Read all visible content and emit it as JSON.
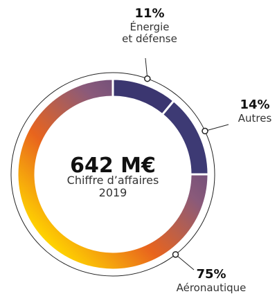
{
  "chart_data": {
    "type": "donut",
    "center_value": "642 M€",
    "center_label": "Chiffre d’affaires\n2019",
    "categories": [
      "Énergie\net défense",
      "Autres",
      "Aéronautique"
    ],
    "values": [
      11,
      14,
      75
    ],
    "value_labels": [
      "11%",
      "14%",
      "75%"
    ],
    "colors": [
      "#3b3670",
      "#3d3a74",
      "gradient"
    ]
  }
}
